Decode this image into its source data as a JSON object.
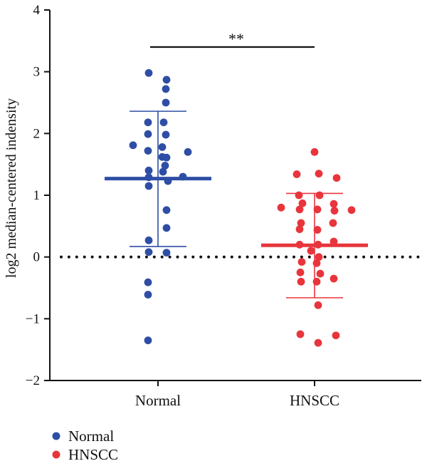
{
  "chart_data": {
    "type": "scatter",
    "ylabel": "log2 median-centered indensity",
    "ylim": [
      -2,
      4
    ],
    "yticks": [
      -2,
      -1,
      0,
      1,
      2,
      3,
      4
    ],
    "ytick_labels": [
      "−2",
      "−1",
      "0",
      "1",
      "2",
      "3",
      "4"
    ],
    "categories": [
      "Normal",
      "HNSCC"
    ],
    "reference_line": {
      "y": 0,
      "style": "dotted"
    },
    "significance": {
      "label": "**",
      "between": [
        "Normal",
        "HNSCC"
      ]
    },
    "legend": {
      "position": "bottom-left"
    },
    "series": [
      {
        "name": "Normal",
        "color": "#2e4ea6",
        "mean": 1.27,
        "sd_upper": 2.36,
        "sd_lower": 0.17,
        "points": [
          {
            "offset": -0.13,
            "y": 2.98
          },
          {
            "offset": 0.12,
            "y": 2.87
          },
          {
            "offset": 0.11,
            "y": 2.72
          },
          {
            "offset": 0.11,
            "y": 2.5
          },
          {
            "offset": -0.14,
            "y": 2.18
          },
          {
            "offset": 0.08,
            "y": 2.18
          },
          {
            "offset": -0.14,
            "y": 1.99
          },
          {
            "offset": 0.11,
            "y": 1.98
          },
          {
            "offset": -0.35,
            "y": 1.81
          },
          {
            "offset": 0.06,
            "y": 1.78
          },
          {
            "offset": -0.14,
            "y": 1.72
          },
          {
            "offset": 0.42,
            "y": 1.7
          },
          {
            "offset": 0.06,
            "y": 1.62
          },
          {
            "offset": 0.12,
            "y": 1.61
          },
          {
            "offset": 0.1,
            "y": 1.48
          },
          {
            "offset": -0.13,
            "y": 1.4
          },
          {
            "offset": 0.07,
            "y": 1.38
          },
          {
            "offset": 0.35,
            "y": 1.3
          },
          {
            "offset": -0.13,
            "y": 1.29
          },
          {
            "offset": 0.14,
            "y": 1.23
          },
          {
            "offset": -0.13,
            "y": 1.15
          },
          {
            "offset": 0.12,
            "y": 0.76
          },
          {
            "offset": 0.12,
            "y": 0.47
          },
          {
            "offset": -0.13,
            "y": 0.27
          },
          {
            "offset": -0.13,
            "y": 0.08
          },
          {
            "offset": 0.12,
            "y": 0.07
          },
          {
            "offset": -0.14,
            "y": -0.41
          },
          {
            "offset": -0.14,
            "y": -0.61
          },
          {
            "offset": -0.14,
            "y": -1.35
          }
        ]
      },
      {
        "name": "HNSCC",
        "color": "#e8353c",
        "mean": 0.19,
        "sd_upper": 1.03,
        "sd_lower": -0.66,
        "points": [
          {
            "offset": 0.0,
            "y": 1.7
          },
          {
            "offset": -0.25,
            "y": 1.34
          },
          {
            "offset": 0.06,
            "y": 1.35
          },
          {
            "offset": 0.31,
            "y": 1.28
          },
          {
            "offset": -0.22,
            "y": 1.0
          },
          {
            "offset": 0.07,
            "y": 1.0
          },
          {
            "offset": -0.17,
            "y": 0.87
          },
          {
            "offset": 0.27,
            "y": 0.86
          },
          {
            "offset": -0.47,
            "y": 0.8
          },
          {
            "offset": -0.21,
            "y": 0.77
          },
          {
            "offset": 0.04,
            "y": 0.77
          },
          {
            "offset": 0.28,
            "y": 0.75
          },
          {
            "offset": 0.52,
            "y": 0.76
          },
          {
            "offset": -0.19,
            "y": 0.55
          },
          {
            "offset": 0.26,
            "y": 0.55
          },
          {
            "offset": -0.21,
            "y": 0.45
          },
          {
            "offset": 0.04,
            "y": 0.44
          },
          {
            "offset": 0.27,
            "y": 0.25
          },
          {
            "offset": -0.21,
            "y": 0.2
          },
          {
            "offset": 0.05,
            "y": 0.2
          },
          {
            "offset": -0.05,
            "y": 0.1
          },
          {
            "offset": 0.06,
            "y": 0.0
          },
          {
            "offset": -0.18,
            "y": -0.08
          },
          {
            "offset": 0.03,
            "y": -0.1
          },
          {
            "offset": -0.2,
            "y": -0.25
          },
          {
            "offset": 0.08,
            "y": -0.27
          },
          {
            "offset": -0.19,
            "y": -0.4
          },
          {
            "offset": 0.03,
            "y": -0.4
          },
          {
            "offset": 0.27,
            "y": -0.35
          },
          {
            "offset": 0.05,
            "y": -0.78
          },
          {
            "offset": -0.2,
            "y": -1.25
          },
          {
            "offset": 0.3,
            "y": -1.27
          },
          {
            "offset": 0.05,
            "y": -1.39
          }
        ]
      }
    ]
  }
}
